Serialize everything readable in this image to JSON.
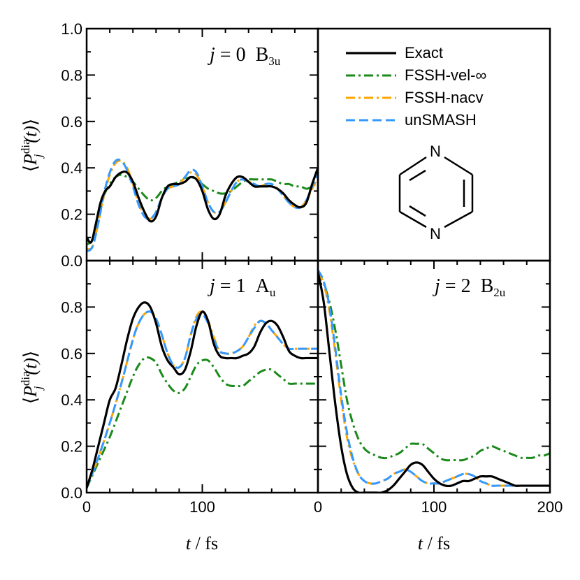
{
  "chart_data": [
    {
      "type": "line",
      "panel": "top-left",
      "label": {
        "j": "j",
        "eq": " = ",
        "index": "0",
        "state": "B",
        "sub": "3u"
      },
      "xlim": [
        0,
        200
      ],
      "ylim": [
        0,
        1
      ],
      "xticks": [],
      "yticks": [
        "0.0",
        "0.2",
        "0.4",
        "0.6",
        "0.8",
        "1.0"
      ],
      "series": [
        {
          "name": "Exact",
          "x": [
            0,
            4,
            8,
            12,
            16,
            20,
            25,
            30,
            35,
            40,
            45,
            50,
            55,
            60,
            65,
            70,
            75,
            80,
            85,
            90,
            95,
            100,
            105,
            110,
            115,
            120,
            125,
            130,
            135,
            140,
            145,
            150,
            155,
            160,
            165,
            170,
            175,
            180,
            185,
            190,
            195,
            200
          ],
          "y": [
            0.1,
            0.08,
            0.16,
            0.25,
            0.3,
            0.32,
            0.36,
            0.38,
            0.38,
            0.34,
            0.27,
            0.21,
            0.17,
            0.19,
            0.27,
            0.32,
            0.33,
            0.33,
            0.34,
            0.36,
            0.35,
            0.3,
            0.22,
            0.18,
            0.2,
            0.28,
            0.33,
            0.36,
            0.36,
            0.34,
            0.32,
            0.32,
            0.32,
            0.32,
            0.31,
            0.29,
            0.26,
            0.24,
            0.23,
            0.25,
            0.33,
            0.4
          ]
        },
        {
          "name": "FSSH-vel-∞",
          "x": [
            0,
            5,
            10,
            15,
            20,
            25,
            30,
            35,
            40,
            45,
            50,
            55,
            60,
            65,
            70,
            75,
            80,
            85,
            90,
            95,
            100,
            105,
            110,
            115,
            120,
            125,
            130,
            135,
            140,
            145,
            150,
            155,
            160,
            165,
            170,
            175,
            180,
            185,
            190,
            195,
            200
          ],
          "y": [
            0.07,
            0.09,
            0.18,
            0.28,
            0.33,
            0.36,
            0.37,
            0.36,
            0.34,
            0.31,
            0.28,
            0.26,
            0.27,
            0.3,
            0.32,
            0.33,
            0.34,
            0.35,
            0.36,
            0.35,
            0.33,
            0.31,
            0.3,
            0.29,
            0.29,
            0.3,
            0.32,
            0.34,
            0.35,
            0.35,
            0.35,
            0.35,
            0.35,
            0.34,
            0.33,
            0.33,
            0.32,
            0.32,
            0.31,
            0.32,
            0.34
          ]
        },
        {
          "name": "FSSH-nacv",
          "x": [
            0,
            5,
            10,
            15,
            20,
            25,
            30,
            35,
            40,
            45,
            50,
            55,
            60,
            65,
            70,
            75,
            80,
            85,
            90,
            95,
            100,
            105,
            110,
            115,
            120,
            125,
            130,
            135,
            140,
            145,
            150,
            155,
            160,
            165,
            170,
            175,
            180,
            185,
            190,
            195,
            200
          ],
          "y": [
            0.05,
            0.06,
            0.16,
            0.28,
            0.37,
            0.42,
            0.43,
            0.4,
            0.33,
            0.25,
            0.2,
            0.18,
            0.21,
            0.27,
            0.31,
            0.32,
            0.33,
            0.36,
            0.38,
            0.37,
            0.32,
            0.25,
            0.21,
            0.21,
            0.25,
            0.3,
            0.34,
            0.35,
            0.34,
            0.33,
            0.32,
            0.33,
            0.33,
            0.31,
            0.28,
            0.25,
            0.23,
            0.23,
            0.26,
            0.31,
            0.36
          ]
        },
        {
          "name": "unSMASH",
          "x": [
            0,
            5,
            10,
            15,
            20,
            25,
            30,
            35,
            40,
            45,
            50,
            55,
            60,
            65,
            70,
            75,
            80,
            85,
            90,
            95,
            100,
            105,
            110,
            115,
            120,
            125,
            130,
            135,
            140,
            145,
            150,
            155,
            160,
            165,
            170,
            175,
            180,
            185,
            190,
            195,
            200
          ],
          "y": [
            0.04,
            0.06,
            0.16,
            0.29,
            0.38,
            0.43,
            0.43,
            0.39,
            0.32,
            0.24,
            0.19,
            0.18,
            0.21,
            0.27,
            0.31,
            0.32,
            0.33,
            0.36,
            0.39,
            0.38,
            0.32,
            0.25,
            0.21,
            0.21,
            0.25,
            0.3,
            0.34,
            0.35,
            0.34,
            0.33,
            0.32,
            0.33,
            0.33,
            0.31,
            0.28,
            0.25,
            0.23,
            0.23,
            0.26,
            0.32,
            0.37
          ]
        }
      ]
    },
    {
      "type": "legend",
      "panel": "top-right",
      "legend_placement": "top",
      "entries": [
        "Exact",
        "FSSH-vel-∞",
        "FSSH-nacv",
        "unSMASH"
      ],
      "molecule": {
        "atom_top": "N",
        "atom_bottom": "N"
      }
    },
    {
      "type": "line",
      "panel": "bottom-left",
      "label": {
        "j": "j",
        "eq": " = ",
        "index": "1",
        "state": "A",
        "sub": "u"
      },
      "xlim": [
        0,
        200
      ],
      "ylim": [
        0,
        1
      ],
      "xticks": [
        "0",
        "100"
      ],
      "yticks": [
        "0.0",
        "0.2",
        "0.4",
        "0.6",
        "0.8"
      ],
      "xlabel": {
        "var": "t",
        "unit": " / fs"
      },
      "series": [
        {
          "name": "Exact",
          "x": [
            0,
            5,
            10,
            15,
            20,
            25,
            30,
            35,
            40,
            45,
            50,
            55,
            60,
            65,
            70,
            75,
            80,
            85,
            90,
            95,
            100,
            105,
            110,
            115,
            120,
            125,
            130,
            135,
            140,
            145,
            150,
            155,
            160,
            165,
            170,
            175,
            180,
            185,
            190,
            195,
            200
          ],
          "y": [
            0.02,
            0.1,
            0.2,
            0.3,
            0.4,
            0.45,
            0.55,
            0.66,
            0.75,
            0.8,
            0.82,
            0.8,
            0.73,
            0.63,
            0.57,
            0.54,
            0.51,
            0.53,
            0.61,
            0.72,
            0.78,
            0.74,
            0.64,
            0.59,
            0.58,
            0.58,
            0.58,
            0.59,
            0.6,
            0.63,
            0.69,
            0.73,
            0.74,
            0.72,
            0.67,
            0.61,
            0.59,
            0.58,
            0.58,
            0.58,
            0.58
          ]
        },
        {
          "name": "FSSH-vel-∞",
          "x": [
            0,
            10,
            20,
            30,
            40,
            45,
            50,
            55,
            60,
            65,
            70,
            75,
            80,
            85,
            90,
            95,
            100,
            105,
            110,
            115,
            120,
            125,
            130,
            135,
            140,
            145,
            150,
            155,
            160,
            165,
            170,
            175,
            180,
            185,
            190,
            195,
            200
          ],
          "y": [
            0.02,
            0.13,
            0.24,
            0.37,
            0.5,
            0.55,
            0.58,
            0.58,
            0.56,
            0.51,
            0.47,
            0.44,
            0.43,
            0.45,
            0.5,
            0.55,
            0.57,
            0.57,
            0.54,
            0.5,
            0.47,
            0.46,
            0.46,
            0.46,
            0.48,
            0.5,
            0.52,
            0.53,
            0.53,
            0.51,
            0.49,
            0.47,
            0.47,
            0.47,
            0.47,
            0.47,
            0.47
          ]
        },
        {
          "name": "FSSH-nacv",
          "x": [
            0,
            10,
            20,
            30,
            40,
            45,
            50,
            55,
            60,
            65,
            70,
            75,
            80,
            85,
            90,
            95,
            100,
            105,
            110,
            115,
            120,
            125,
            130,
            135,
            140,
            145,
            150,
            155,
            160,
            165,
            170,
            175,
            180,
            185,
            190,
            195,
            200
          ],
          "y": [
            0.02,
            0.15,
            0.3,
            0.47,
            0.66,
            0.73,
            0.77,
            0.78,
            0.75,
            0.68,
            0.6,
            0.55,
            0.54,
            0.58,
            0.68,
            0.76,
            0.78,
            0.74,
            0.67,
            0.61,
            0.6,
            0.6,
            0.61,
            0.63,
            0.67,
            0.72,
            0.74,
            0.73,
            0.7,
            0.67,
            0.64,
            0.62,
            0.62,
            0.62,
            0.62,
            0.62,
            0.62
          ]
        },
        {
          "name": "unSMASH",
          "x": [
            0,
            10,
            20,
            30,
            40,
            45,
            50,
            55,
            60,
            65,
            70,
            75,
            80,
            85,
            90,
            95,
            100,
            105,
            110,
            115,
            120,
            125,
            130,
            135,
            140,
            145,
            150,
            155,
            160,
            165,
            170,
            175,
            180,
            185,
            190,
            195,
            200
          ],
          "y": [
            0.02,
            0.15,
            0.3,
            0.47,
            0.66,
            0.73,
            0.77,
            0.78,
            0.75,
            0.68,
            0.6,
            0.55,
            0.54,
            0.58,
            0.68,
            0.75,
            0.77,
            0.73,
            0.66,
            0.61,
            0.6,
            0.6,
            0.61,
            0.63,
            0.67,
            0.71,
            0.74,
            0.73,
            0.7,
            0.67,
            0.64,
            0.62,
            0.62,
            0.62,
            0.62,
            0.62,
            0.62
          ]
        }
      ]
    },
    {
      "type": "line",
      "panel": "bottom-right",
      "label": {
        "j": "j",
        "eq": " = ",
        "index": "2",
        "state": "B",
        "sub": "2u"
      },
      "xlim": [
        0,
        200
      ],
      "ylim": [
        0,
        1
      ],
      "xticks": [
        "0",
        "100",
        "200"
      ],
      "yticks": [],
      "xlabel": {
        "var": "t",
        "unit": " / fs"
      },
      "series": [
        {
          "name": "Exact",
          "x": [
            0,
            5,
            10,
            15,
            20,
            25,
            30,
            35,
            40,
            45,
            50,
            55,
            60,
            65,
            70,
            75,
            80,
            85,
            90,
            95,
            100,
            105,
            110,
            115,
            120,
            125,
            130,
            135,
            140,
            145,
            150,
            155,
            160,
            165,
            170,
            175,
            180,
            185,
            190,
            195,
            200
          ],
          "y": [
            0.95,
            0.82,
            0.6,
            0.38,
            0.2,
            0.08,
            0.02,
            0.0,
            0.0,
            0.0,
            0.0,
            0.0,
            0.01,
            0.03,
            0.06,
            0.09,
            0.12,
            0.13,
            0.12,
            0.09,
            0.06,
            0.04,
            0.03,
            0.03,
            0.04,
            0.05,
            0.05,
            0.06,
            0.07,
            0.07,
            0.07,
            0.06,
            0.05,
            0.04,
            0.03,
            0.03,
            0.03,
            0.03,
            0.03,
            0.03,
            0.03
          ]
        },
        {
          "name": "FSSH-vel-∞",
          "x": [
            0,
            5,
            10,
            15,
            20,
            25,
            30,
            35,
            40,
            45,
            50,
            55,
            60,
            65,
            70,
            75,
            80,
            85,
            90,
            95,
            100,
            105,
            110,
            115,
            120,
            125,
            130,
            135,
            140,
            145,
            150,
            155,
            160,
            165,
            170,
            175,
            180,
            185,
            190,
            195,
            200
          ],
          "y": [
            0.95,
            0.9,
            0.82,
            0.7,
            0.55,
            0.4,
            0.3,
            0.23,
            0.19,
            0.17,
            0.16,
            0.15,
            0.15,
            0.16,
            0.17,
            0.19,
            0.21,
            0.21,
            0.21,
            0.19,
            0.17,
            0.15,
            0.14,
            0.14,
            0.14,
            0.14,
            0.15,
            0.16,
            0.18,
            0.19,
            0.2,
            0.19,
            0.18,
            0.17,
            0.16,
            0.15,
            0.15,
            0.15,
            0.16,
            0.16,
            0.17
          ]
        },
        {
          "name": "FSSH-nacv",
          "x": [
            0,
            5,
            10,
            15,
            20,
            25,
            30,
            35,
            40,
            45,
            50,
            55,
            60,
            65,
            70,
            75,
            80,
            85,
            90,
            95,
            100,
            105,
            110,
            115,
            120,
            125,
            130,
            135,
            140,
            145,
            150,
            155,
            160,
            165,
            170,
            175,
            180,
            185,
            190,
            195,
            200
          ],
          "y": [
            0.95,
            0.9,
            0.78,
            0.6,
            0.4,
            0.24,
            0.14,
            0.08,
            0.05,
            0.04,
            0.04,
            0.05,
            0.06,
            0.08,
            0.09,
            0.1,
            0.09,
            0.07,
            0.05,
            0.04,
            0.04,
            0.04,
            0.05,
            0.06,
            0.07,
            0.08,
            0.08,
            0.07,
            0.05,
            0.04,
            0.03,
            0.03,
            0.03,
            0.03,
            0.03,
            0.03,
            0.03,
            0.03,
            0.03,
            0.03,
            0.03
          ]
        },
        {
          "name": "unSMASH",
          "x": [
            0,
            5,
            10,
            15,
            20,
            25,
            30,
            35,
            40,
            45,
            50,
            55,
            60,
            65,
            70,
            75,
            80,
            85,
            90,
            95,
            100,
            105,
            110,
            115,
            120,
            125,
            130,
            135,
            140,
            145,
            150,
            155,
            160,
            165,
            170,
            175,
            180,
            185,
            190,
            195,
            200
          ],
          "y": [
            0.96,
            0.91,
            0.8,
            0.62,
            0.42,
            0.26,
            0.15,
            0.08,
            0.05,
            0.04,
            0.04,
            0.05,
            0.06,
            0.08,
            0.09,
            0.1,
            0.09,
            0.07,
            0.05,
            0.04,
            0.04,
            0.04,
            0.05,
            0.06,
            0.07,
            0.08,
            0.08,
            0.07,
            0.05,
            0.04,
            0.03,
            0.03,
            0.03,
            0.03,
            0.03,
            0.03,
            0.03,
            0.03,
            0.03,
            0.03,
            0.03
          ]
        }
      ]
    }
  ],
  "ylabel": {
    "open": "⟨",
    "P": "P",
    "sup": "dia",
    "sub": "j",
    "arg": "(t)",
    "close": "⟩"
  },
  "colors": {
    "Exact": "#000000",
    "FSSH-vel-∞": "#1a8a1a",
    "FSSH-nacv": "#ffa500",
    "unSMASH": "#3399ff"
  },
  "dash": {
    "Exact": "solid",
    "FSSH-vel-∞": "dash-dot",
    "FSSH-nacv": "dash-dot",
    "unSMASH": "dashed"
  }
}
